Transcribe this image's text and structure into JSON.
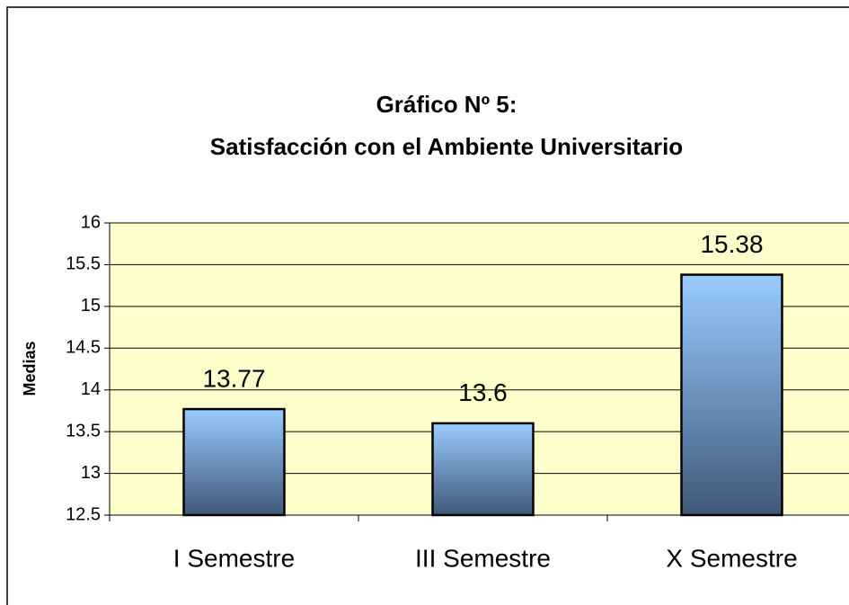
{
  "chart_data": {
    "type": "bar",
    "title": "Gráfico Nº  5:",
    "subtitle": "Satisfacción con el Ambiente Universitario",
    "y_label": "Medias",
    "categories": [
      "I Semestre",
      "III Semestre",
      "X Semestre"
    ],
    "values": [
      13.77,
      13.6,
      15.38
    ],
    "color": "#99ccff",
    "ylim": [
      12.5,
      16
    ],
    "yticks": [
      12.5,
      13,
      13.5,
      14,
      14.5,
      15,
      15.5,
      16
    ],
    "grid": true
  }
}
